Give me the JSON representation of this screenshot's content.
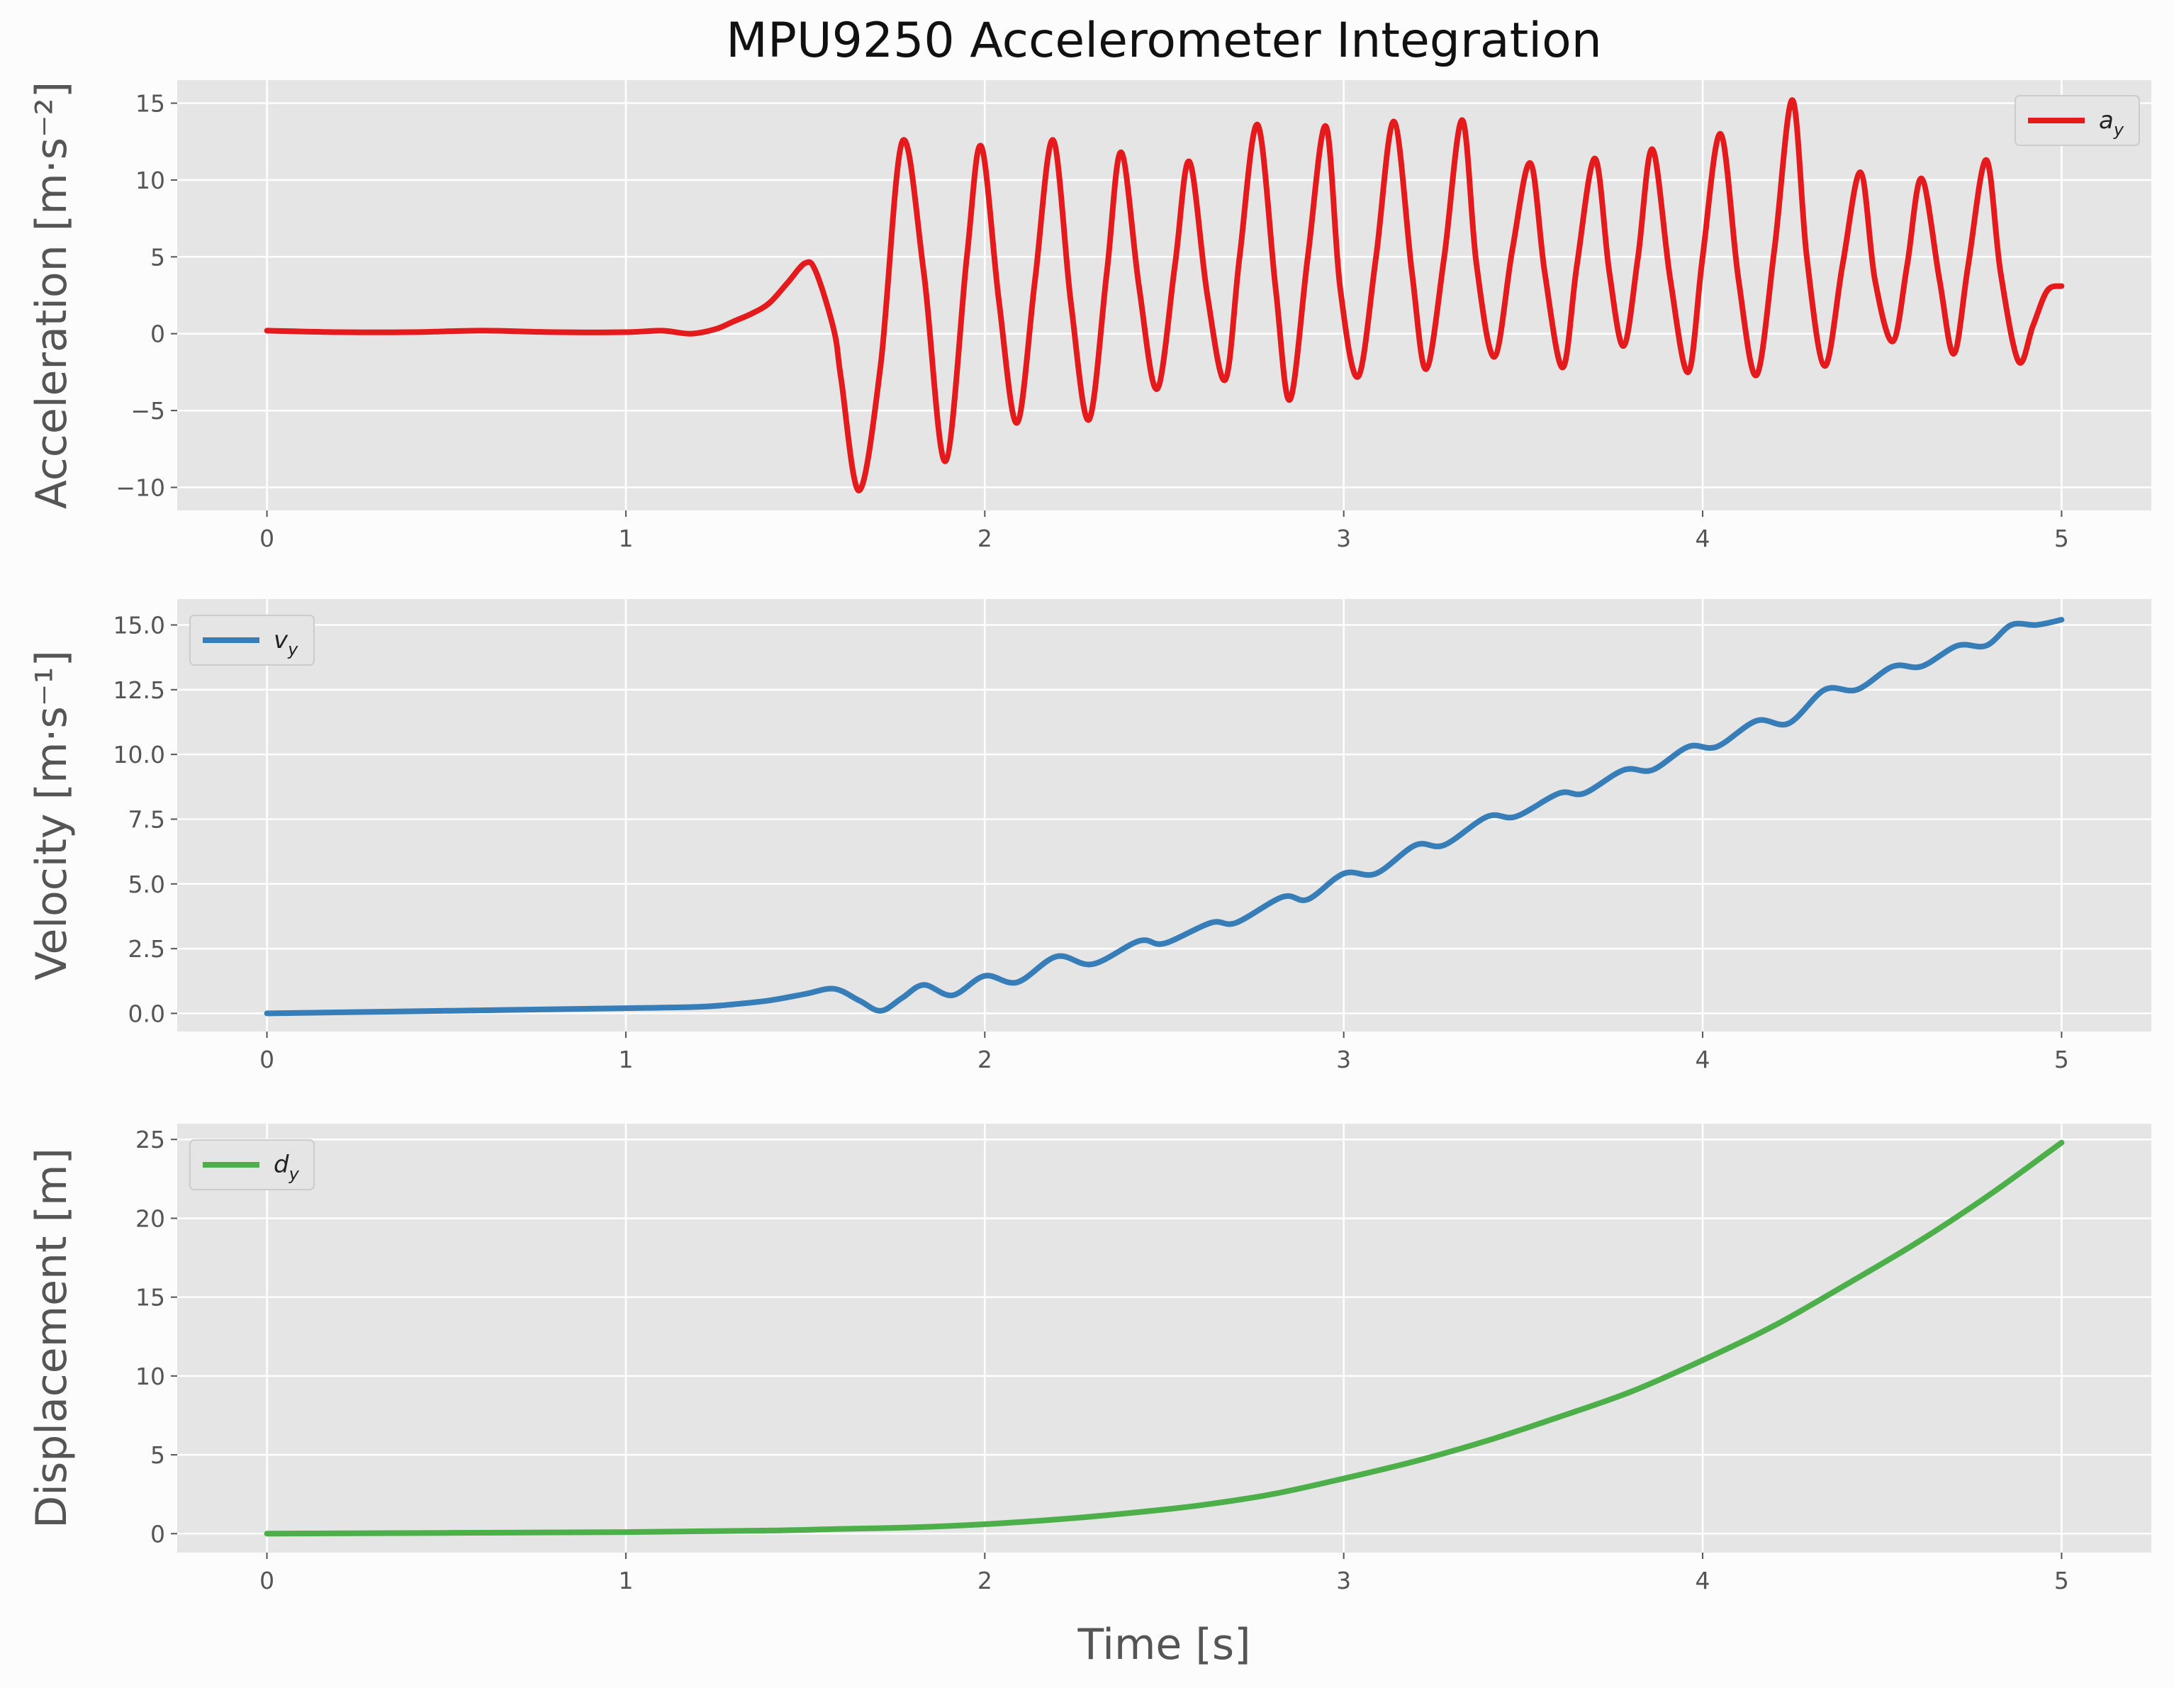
{
  "figure": {
    "title": "MPU9250 Accelerometer Integration",
    "background_color": "#fcfcfc",
    "axes_background_color": "#e5e5e5",
    "grid_color": "#ffffff"
  },
  "chart_data": [
    {
      "type": "line",
      "title": "MPU9250 Accelerometer Integration",
      "xlabel": "",
      "ylabel": "Acceleration [m·s⁻²]",
      "xlim": [
        -0.25,
        5.25
      ],
      "ylim": [
        -11.5,
        16.5
      ],
      "xticks": [
        0,
        1,
        2,
        3,
        4,
        5
      ],
      "xtick_labels": [
        "0",
        "1",
        "2",
        "3",
        "4",
        "5"
      ],
      "yticks": [
        -10,
        -5,
        0,
        5,
        10,
        15
      ],
      "ytick_labels": [
        "−10",
        "−5",
        "0",
        "5",
        "10",
        "15"
      ],
      "grid": true,
      "legend_position": "upper right",
      "series": [
        {
          "name": "a_y",
          "legend_main": "a",
          "legend_sub": "y",
          "color": "#e41a1c",
          "x": [
            0.0,
            0.2,
            0.4,
            0.6,
            0.8,
            1.0,
            1.1,
            1.18,
            1.25,
            1.3,
            1.35,
            1.4,
            1.45,
            1.5,
            1.53,
            1.58,
            1.6,
            1.65,
            1.71,
            1.77,
            1.83,
            1.89,
            1.95,
            1.99,
            2.04,
            2.09,
            2.14,
            2.19,
            2.24,
            2.29,
            2.34,
            2.38,
            2.43,
            2.48,
            2.53,
            2.57,
            2.62,
            2.67,
            2.71,
            2.76,
            2.81,
            2.85,
            2.9,
            2.95,
            2.99,
            3.04,
            3.09,
            3.14,
            3.19,
            3.23,
            3.28,
            3.33,
            3.37,
            3.42,
            3.47,
            3.52,
            3.56,
            3.61,
            3.65,
            3.7,
            3.74,
            3.78,
            3.82,
            3.86,
            3.91,
            3.96,
            4.0,
            4.05,
            4.1,
            4.15,
            4.2,
            4.25,
            4.29,
            4.34,
            4.39,
            4.44,
            4.48,
            4.53,
            4.57,
            4.61,
            4.66,
            4.7,
            4.74,
            4.79,
            4.83,
            4.88,
            4.92,
            4.96,
            5.0
          ],
          "values": [
            0.2,
            0.1,
            0.1,
            0.2,
            0.1,
            0.1,
            0.2,
            0.0,
            0.3,
            0.8,
            1.3,
            2.0,
            3.3,
            4.6,
            4.0,
            0.2,
            -3.0,
            -10.2,
            -2.0,
            12.5,
            4.0,
            -8.3,
            5.0,
            12.2,
            2.0,
            -5.8,
            3.5,
            12.6,
            2.0,
            -5.6,
            4.0,
            11.8,
            3.0,
            -3.6,
            4.5,
            11.2,
            2.5,
            -3.0,
            5.0,
            13.6,
            3.0,
            -4.3,
            5.0,
            13.5,
            3.0,
            -2.8,
            5.0,
            13.8,
            4.0,
            -2.3,
            5.0,
            13.9,
            4.5,
            -1.5,
            5.5,
            11.1,
            4.0,
            -2.2,
            4.5,
            11.4,
            4.0,
            -0.8,
            5.0,
            12.0,
            3.5,
            -2.5,
            5.0,
            13.0,
            3.5,
            -2.7,
            5.5,
            15.2,
            5.0,
            -2.1,
            4.5,
            10.5,
            3.5,
            -0.5,
            4.5,
            10.1,
            3.5,
            -1.3,
            4.5,
            11.3,
            4.0,
            -1.8,
            0.5,
            2.8,
            3.1
          ]
        }
      ]
    },
    {
      "type": "line",
      "xlabel": "",
      "ylabel": "Velocity [m·s⁻¹]",
      "xlim": [
        -0.25,
        5.25
      ],
      "ylim": [
        -0.7,
        16.0
      ],
      "xticks": [
        0,
        1,
        2,
        3,
        4,
        5
      ],
      "xtick_labels": [
        "0",
        "1",
        "2",
        "3",
        "4",
        "5"
      ],
      "yticks": [
        0.0,
        2.5,
        5.0,
        7.5,
        10.0,
        12.5,
        15.0
      ],
      "ytick_labels": [
        "0.0",
        "2.5",
        "5.0",
        "7.5",
        "10.0",
        "12.5",
        "15.0"
      ],
      "grid": true,
      "legend_position": "upper left",
      "series": [
        {
          "name": "v_y",
          "legend_main": "v",
          "legend_sub": "y",
          "color": "#377eb8",
          "x": [
            0.0,
            0.5,
            1.0,
            1.2,
            1.3,
            1.4,
            1.5,
            1.58,
            1.65,
            1.71,
            1.77,
            1.83,
            1.91,
            2.0,
            2.09,
            2.2,
            2.3,
            2.43,
            2.5,
            2.63,
            2.7,
            2.83,
            2.9,
            3.0,
            3.09,
            3.2,
            3.28,
            3.4,
            3.48,
            3.6,
            3.67,
            3.78,
            3.86,
            3.96,
            4.04,
            4.15,
            4.24,
            4.34,
            4.43,
            4.53,
            4.61,
            4.71,
            4.79,
            4.86,
            4.93,
            5.0
          ],
          "values": [
            0.0,
            0.1,
            0.2,
            0.25,
            0.35,
            0.5,
            0.75,
            0.95,
            0.5,
            0.1,
            0.6,
            1.1,
            0.7,
            1.45,
            1.2,
            2.2,
            1.9,
            2.8,
            2.7,
            3.5,
            3.5,
            4.5,
            4.4,
            5.4,
            5.4,
            6.5,
            6.5,
            7.6,
            7.6,
            8.5,
            8.5,
            9.4,
            9.4,
            10.3,
            10.3,
            11.3,
            11.2,
            12.5,
            12.5,
            13.4,
            13.4,
            14.2,
            14.2,
            15.0,
            15.0,
            15.2
          ]
        }
      ]
    },
    {
      "type": "line",
      "xlabel": "Time [s]",
      "ylabel": "Displacement [m]",
      "xlim": [
        -0.25,
        5.25
      ],
      "ylim": [
        -1.2,
        26.0
      ],
      "xticks": [
        0,
        1,
        2,
        3,
        4,
        5
      ],
      "xtick_labels": [
        "0",
        "1",
        "2",
        "3",
        "4",
        "5"
      ],
      "yticks": [
        0,
        5,
        10,
        15,
        20,
        25
      ],
      "ytick_labels": [
        "0",
        "5",
        "10",
        "15",
        "20",
        "25"
      ],
      "grid": true,
      "legend_position": "upper left",
      "series": [
        {
          "name": "d_y",
          "legend_main": "d",
          "legend_sub": "y",
          "color": "#4daf4a",
          "x": [
            0.0,
            0.5,
            1.0,
            1.4,
            1.6,
            1.8,
            2.0,
            2.2,
            2.4,
            2.6,
            2.8,
            3.0,
            3.2,
            3.4,
            3.6,
            3.8,
            4.0,
            4.2,
            4.4,
            4.6,
            4.8,
            5.0
          ],
          "values": [
            0.0,
            0.05,
            0.1,
            0.2,
            0.3,
            0.4,
            0.6,
            0.9,
            1.3,
            1.8,
            2.5,
            3.5,
            4.6,
            5.9,
            7.4,
            9.0,
            11.0,
            13.2,
            15.8,
            18.5,
            21.5,
            24.8
          ]
        }
      ]
    }
  ]
}
